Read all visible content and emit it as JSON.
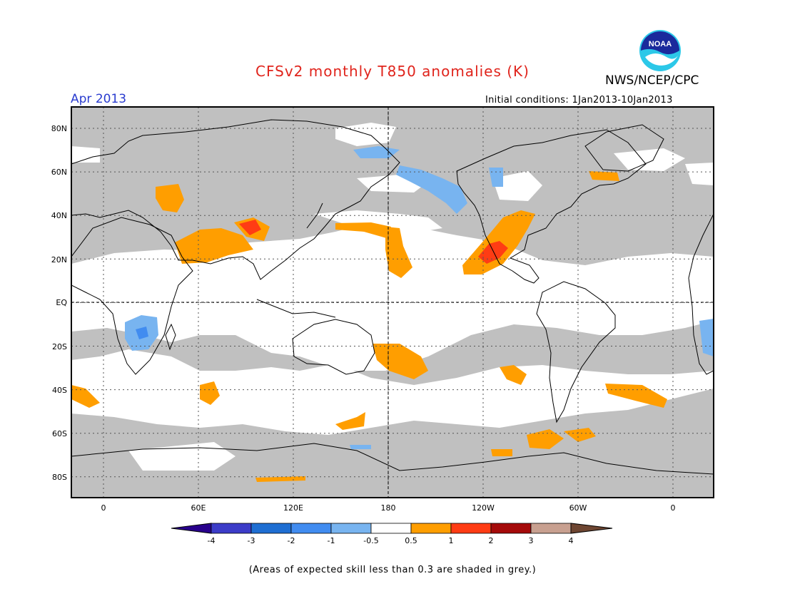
{
  "header": {
    "title": "CFSv2 monthly T850 anomalies (K)",
    "org": "NWS/NCEP/CPC",
    "logo_text": "NOAA",
    "month": "Apr 2013",
    "initial_conditions": "Initial conditions: 1Jan2013-10Jan2013"
  },
  "colors": {
    "title": "#e0241c",
    "month": "#2a3ccf",
    "skill_grey": "#c0c0c0",
    "land_outline": "#000000",
    "anom_0_5_1": "#ff9e00",
    "anom_1_2": "#ff3c14",
    "anom_2_3": "#a50a0a",
    "anom_3_4": "#c8a090",
    "anom_gt4": "#6e4632",
    "anom_m0_5_m1": "#78b4f0",
    "anom_m1_m2": "#418cf0",
    "anom_m2_m3": "#1e6ed2",
    "anom_m3_m4": "#3c3cc8",
    "anom_lt_m4": "#28008c"
  },
  "map": {
    "lat_labels": [
      "80N",
      "60N",
      "40N",
      "20N",
      "EQ",
      "20S",
      "40S",
      "60S",
      "80S"
    ],
    "lon_labels": [
      "0",
      "60E",
      "120E",
      "180",
      "120W",
      "60W",
      "0"
    ]
  },
  "colorbar": {
    "labels": [
      "-4",
      "-3",
      "-2",
      "-1",
      "-0.5",
      "0.5",
      "1",
      "2",
      "3",
      "4"
    ],
    "colors": [
      "#3c3cc8",
      "#1e6ed2",
      "#418cf0",
      "#78b4f0",
      "#ffffff",
      "#ff9e00",
      "#ff3c14",
      "#a50a0a",
      "#c8a090"
    ],
    "low_end_color": "#28008c",
    "high_end_color": "#6e4632"
  },
  "footer": {
    "note": "(Areas of expected skill less than 0.3 are shaded in grey.)"
  }
}
